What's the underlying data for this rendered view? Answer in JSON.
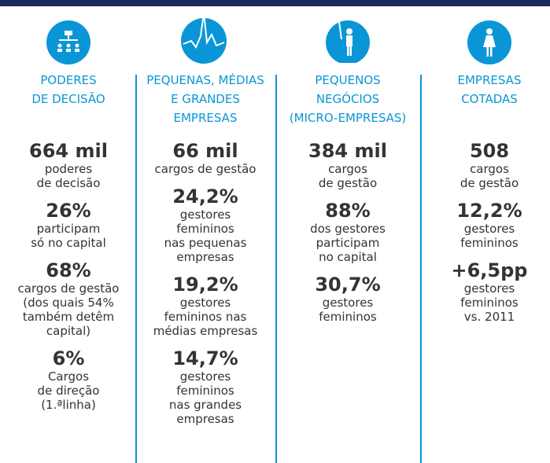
{
  "columns": [
    {
      "title": [
        "PODERES",
        "DE DECISÃO"
      ],
      "stats": [
        {
          "value": "664 mil",
          "desc": [
            "poderes",
            "de decisão"
          ]
        },
        {
          "value": "26%",
          "desc": [
            "participam",
            "só no capital"
          ]
        },
        {
          "value": "68%",
          "desc": [
            "cargos de gestão",
            "(dos quais 54%",
            "também detêm",
            "capital)"
          ]
        },
        {
          "value": "6%",
          "desc": [
            "Cargos",
            "de direção",
            "(1.ªlinha)"
          ]
        }
      ]
    },
    {
      "title": [
        "PEQUENAS, MÉDIAS",
        "E GRANDES",
        "EMPRESAS"
      ],
      "stats": [
        {
          "value": "66 mil",
          "desc": [
            "cargos de gestão"
          ]
        },
        {
          "value": "24,2%",
          "desc": [
            "gestores",
            "femininos",
            "nas pequenas",
            "empresas"
          ]
        },
        {
          "value": "19,2%",
          "desc": [
            "gestores",
            "femininos nas",
            "médias empresas"
          ]
        },
        {
          "value": "14,7%",
          "desc": [
            "gestores",
            "femininos",
            "nas grandes",
            "empresas"
          ]
        }
      ]
    },
    {
      "title": [
        "PEQUENOS",
        "NEGÓCIOS",
        "(MICRO-EMPRESAS)"
      ],
      "stats": [
        {
          "value": "384 mil",
          "desc": [
            "cargos",
            "de gestão"
          ]
        },
        {
          "value": "88%",
          "desc": [
            "dos gestores",
            "participam",
            "no capital"
          ]
        },
        {
          "value": "30,7%",
          "desc": [
            "gestores",
            "femininos"
          ]
        }
      ]
    },
    {
      "title": [
        "EMPRESAS",
        "COTADAS"
      ],
      "stats": [
        {
          "value": "508",
          "desc": [
            "cargos",
            "de gestão"
          ]
        },
        {
          "value": "12,2%",
          "desc": [
            "gestores",
            "femininos"
          ]
        },
        {
          "value": "+6,5pp",
          "desc": [
            "gestores",
            "femininos",
            "vs. 2011"
          ]
        }
      ]
    }
  ]
}
